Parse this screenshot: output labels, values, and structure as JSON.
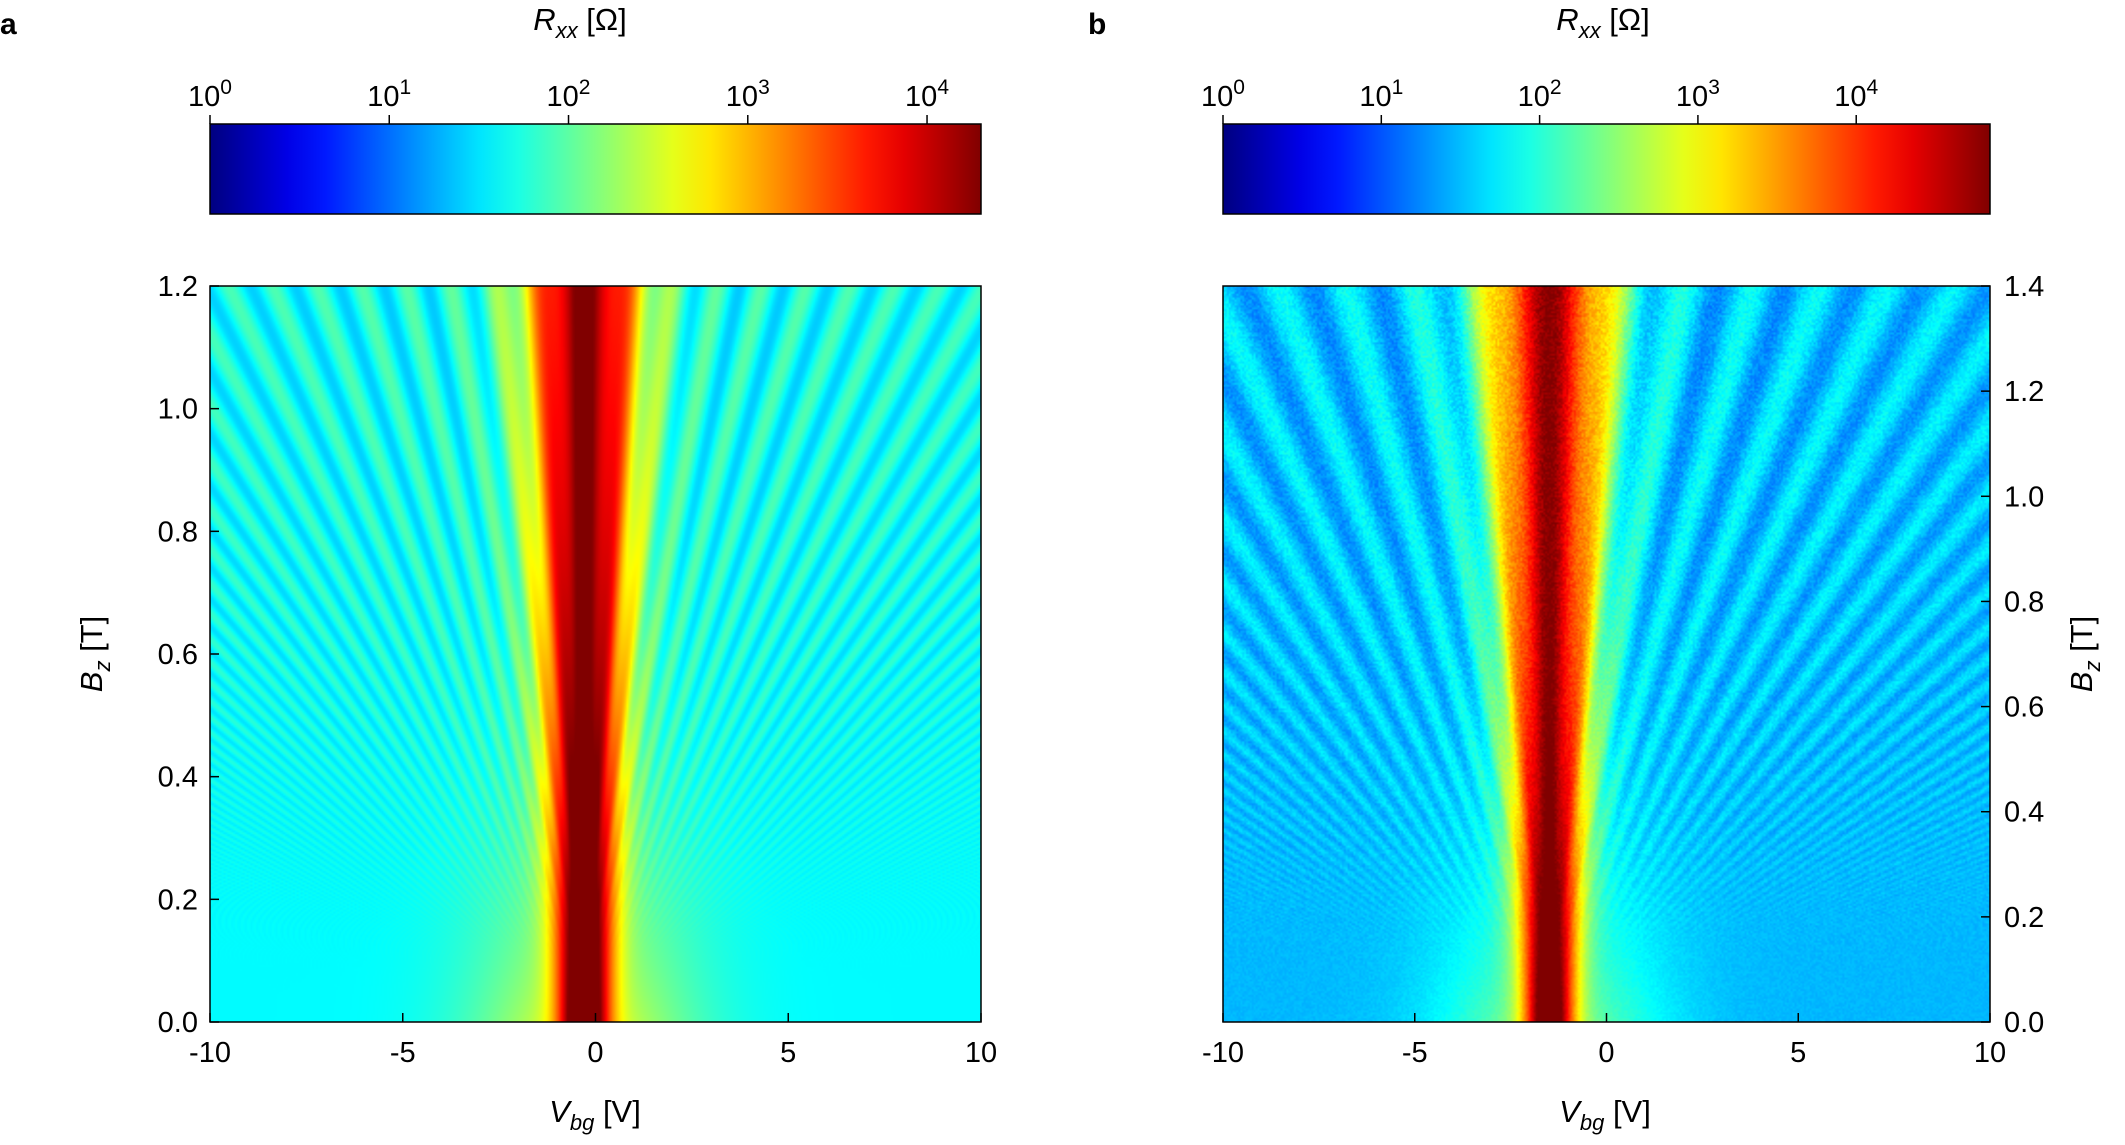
{
  "chart_data": [
    {
      "panel": "a",
      "type": "heatmap",
      "colorbar": {
        "label": "R",
        "label_sub": "xx",
        "label_unit": " [Ω]",
        "scale": "log",
        "range": [
          1,
          20000
        ],
        "tick_values": [
          1,
          10,
          100,
          1000,
          10000
        ],
        "tick_base": "10",
        "tick_exponents": [
          "0",
          "1",
          "2",
          "3",
          "4"
        ],
        "colormap": "jet"
      },
      "x": {
        "label": "V",
        "label_sub": "bg",
        "label_unit": " [V]",
        "range": [
          -10,
          10
        ],
        "ticks": [
          -10,
          -5,
          0,
          5,
          10
        ],
        "tick_labels": [
          "-10",
          "-5",
          "0",
          "5",
          "10"
        ]
      },
      "y": {
        "label": "B",
        "label_sub": "z",
        "label_unit": " [T]",
        "range": [
          0,
          1.2
        ],
        "ticks": [
          0,
          0.2,
          0.4,
          0.6,
          0.8,
          1.0,
          1.2
        ],
        "tick_labels": [
          "0.0",
          "0.2",
          "0.4",
          "0.6",
          "0.8",
          "1.0",
          "1.2"
        ],
        "side": "left"
      },
      "charge_neutrality_point_V": -0.3,
      "fan_spacing": 0.95,
      "peak_resistance_ohm": 20000,
      "background_resistance_ohm": 40,
      "noise": 0
    },
    {
      "panel": "b",
      "type": "heatmap",
      "colorbar": {
        "label": "R",
        "label_sub": "xx",
        "label_unit": " [Ω]",
        "scale": "log",
        "range": [
          1,
          70000
        ],
        "tick_values": [
          1,
          10,
          100,
          1000,
          10000
        ],
        "tick_base": "10",
        "tick_exponents": [
          "0",
          "1",
          "2",
          "3",
          "4"
        ],
        "colormap": "jet"
      },
      "x": {
        "label": "V",
        "label_sub": "bg",
        "label_unit": " [V]",
        "range": [
          -10,
          10
        ],
        "ticks": [
          -10,
          -5,
          0,
          5,
          10
        ],
        "tick_labels": [
          "-10",
          "-5",
          "0",
          "5",
          "10"
        ]
      },
      "y": {
        "label": "B",
        "label_sub": "z",
        "label_unit": " [T]",
        "range": [
          0,
          1.4
        ],
        "ticks": [
          0,
          0.2,
          0.4,
          0.6,
          0.8,
          1.0,
          1.2,
          1.4
        ],
        "tick_labels": [
          "0.0",
          "0.2",
          "0.4",
          "0.6",
          "0.8",
          "1.0",
          "1.2",
          "1.4"
        ],
        "side": "right"
      },
      "charge_neutrality_point_V": -1.5,
      "fan_spacing": 1.25,
      "peak_resistance_ohm": 40000,
      "background_resistance_ohm": 30,
      "noise": 0.35
    }
  ]
}
